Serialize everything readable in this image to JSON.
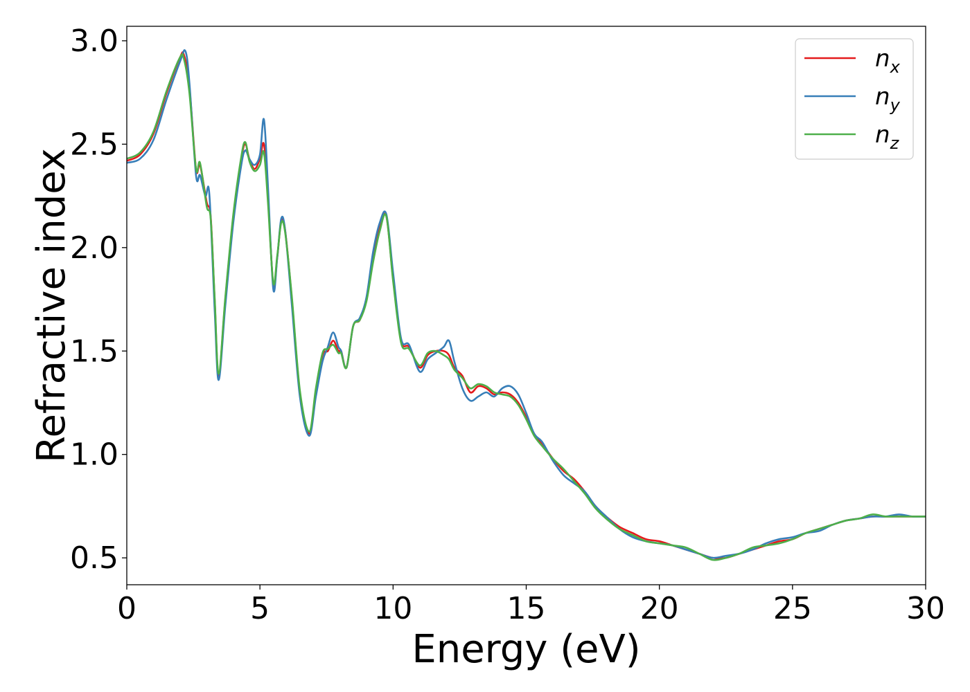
{
  "chart_data": {
    "type": "line",
    "xlabel": "Energy (eV)",
    "ylabel": "Refractive index",
    "xlim": [
      0,
      30
    ],
    "ylim": [
      0.37,
      3.07
    ],
    "x_ticks": [
      0,
      5,
      10,
      15,
      20,
      25,
      30
    ],
    "x_tick_labels": [
      "0",
      "5",
      "10",
      "15",
      "20",
      "25",
      "30"
    ],
    "y_ticks": [
      0.5,
      1.0,
      1.5,
      2.0,
      2.5,
      3.0
    ],
    "y_tick_labels": [
      "0.5",
      "1.0",
      "1.5",
      "2.0",
      "2.5",
      "3.0"
    ],
    "grid": false,
    "legend_position": "top-right",
    "series": [
      {
        "name": "n_x",
        "label_base": "n",
        "label_sub": "x",
        "color": "#e41a1c",
        "x": [
          0,
          0.5,
          1.0,
          1.5,
          2.0,
          2.15,
          2.35,
          2.6,
          2.75,
          3.0,
          3.15,
          3.3,
          3.45,
          3.7,
          4.0,
          4.3,
          4.45,
          4.6,
          4.8,
          5.0,
          5.15,
          5.3,
          5.5,
          5.65,
          5.8,
          5.95,
          6.2,
          6.5,
          6.85,
          7.1,
          7.35,
          7.55,
          7.75,
          7.95,
          8.05,
          8.25,
          8.5,
          8.75,
          9.0,
          9.25,
          9.5,
          9.75,
          10.0,
          10.3,
          10.6,
          11.0,
          11.3,
          11.6,
          11.9,
          12.1,
          12.3,
          12.6,
          12.9,
          13.2,
          13.5,
          13.8,
          14.1,
          14.4,
          14.7,
          15.0,
          15.3,
          15.6,
          16.0,
          16.4,
          16.8,
          17.2,
          17.6,
          18.0,
          18.5,
          19.0,
          19.5,
          20.0,
          20.5,
          21.0,
          21.5,
          22.0,
          22.5,
          23.0,
          23.5,
          24.0,
          24.5,
          25.0,
          25.5,
          26.0,
          26.5,
          27.0,
          27.5,
          28.0,
          28.5,
          29.0,
          29.5,
          30.0
        ],
        "y": [
          2.42,
          2.45,
          2.55,
          2.75,
          2.92,
          2.93,
          2.78,
          2.38,
          2.4,
          2.22,
          2.15,
          1.75,
          1.38,
          1.75,
          2.15,
          2.43,
          2.5,
          2.43,
          2.38,
          2.43,
          2.5,
          2.25,
          1.82,
          1.95,
          2.13,
          2.08,
          1.75,
          1.3,
          1.1,
          1.3,
          1.48,
          1.5,
          1.55,
          1.5,
          1.5,
          1.42,
          1.62,
          1.65,
          1.75,
          1.95,
          2.1,
          2.15,
          1.85,
          1.55,
          1.52,
          1.42,
          1.48,
          1.5,
          1.5,
          1.48,
          1.42,
          1.38,
          1.3,
          1.33,
          1.32,
          1.29,
          1.3,
          1.29,
          1.25,
          1.18,
          1.1,
          1.05,
          0.98,
          0.92,
          0.88,
          0.82,
          0.75,
          0.7,
          0.65,
          0.62,
          0.59,
          0.58,
          0.56,
          0.54,
          0.52,
          0.5,
          0.5,
          0.52,
          0.54,
          0.56,
          0.58,
          0.59,
          0.62,
          0.64,
          0.66,
          0.68,
          0.69,
          0.7,
          0.7,
          0.7,
          0.7,
          0.7
        ]
      },
      {
        "name": "n_y",
        "label_base": "n",
        "label_sub": "y",
        "color": "#377eb8",
        "x": [
          0,
          0.5,
          1.0,
          1.5,
          2.0,
          2.2,
          2.35,
          2.6,
          2.75,
          2.95,
          3.1,
          3.3,
          3.45,
          3.7,
          4.0,
          4.3,
          4.45,
          4.6,
          4.8,
          5.0,
          5.15,
          5.3,
          5.5,
          5.65,
          5.8,
          5.95,
          6.2,
          6.5,
          6.85,
          7.1,
          7.35,
          7.55,
          7.75,
          7.95,
          8.05,
          8.25,
          8.5,
          8.75,
          9.0,
          9.25,
          9.5,
          9.75,
          10.0,
          10.3,
          10.6,
          11.0,
          11.3,
          11.6,
          11.9,
          12.1,
          12.3,
          12.6,
          12.9,
          13.2,
          13.5,
          13.8,
          14.1,
          14.4,
          14.7,
          15.0,
          15.3,
          15.6,
          16.0,
          16.4,
          16.8,
          17.2,
          17.6,
          18.0,
          18.5,
          19.0,
          19.5,
          20.0,
          20.5,
          21.0,
          21.5,
          22.0,
          22.5,
          23.0,
          23.5,
          24.0,
          24.5,
          25.0,
          25.5,
          26.0,
          26.5,
          27.0,
          27.5,
          28.0,
          28.5,
          29.0,
          29.5,
          30.0
        ],
        "y": [
          2.41,
          2.43,
          2.52,
          2.72,
          2.9,
          2.95,
          2.8,
          2.35,
          2.35,
          2.25,
          2.26,
          1.7,
          1.36,
          1.72,
          2.12,
          2.4,
          2.47,
          2.43,
          2.4,
          2.45,
          2.62,
          2.3,
          1.8,
          1.95,
          2.14,
          2.08,
          1.72,
          1.28,
          1.09,
          1.28,
          1.45,
          1.52,
          1.59,
          1.52,
          1.5,
          1.42,
          1.62,
          1.66,
          1.76,
          1.98,
          2.12,
          2.16,
          1.88,
          1.56,
          1.53,
          1.4,
          1.46,
          1.49,
          1.52,
          1.55,
          1.45,
          1.32,
          1.26,
          1.28,
          1.3,
          1.28,
          1.32,
          1.33,
          1.29,
          1.2,
          1.1,
          1.06,
          0.97,
          0.9,
          0.86,
          0.82,
          0.75,
          0.7,
          0.64,
          0.6,
          0.58,
          0.57,
          0.56,
          0.54,
          0.52,
          0.5,
          0.51,
          0.52,
          0.54,
          0.57,
          0.59,
          0.6,
          0.62,
          0.63,
          0.66,
          0.68,
          0.69,
          0.7,
          0.7,
          0.71,
          0.7,
          0.7
        ]
      },
      {
        "name": "n_z",
        "label_base": "n",
        "label_sub": "z",
        "color": "#4daf4a",
        "x": [
          0,
          0.5,
          1.0,
          1.5,
          2.0,
          2.15,
          2.35,
          2.6,
          2.75,
          3.0,
          3.15,
          3.3,
          3.45,
          3.7,
          4.0,
          4.3,
          4.45,
          4.6,
          4.8,
          5.0,
          5.15,
          5.3,
          5.5,
          5.65,
          5.8,
          5.95,
          6.2,
          6.5,
          6.85,
          7.1,
          7.35,
          7.55,
          7.75,
          7.95,
          8.05,
          8.25,
          8.5,
          8.75,
          9.0,
          9.25,
          9.5,
          9.75,
          10.0,
          10.3,
          10.6,
          11.0,
          11.3,
          11.6,
          11.9,
          12.1,
          12.3,
          12.6,
          12.9,
          13.2,
          13.5,
          13.8,
          14.1,
          14.4,
          14.7,
          15.0,
          15.3,
          15.6,
          16.0,
          16.4,
          16.8,
          17.2,
          17.6,
          18.0,
          18.5,
          19.0,
          19.5,
          20.0,
          20.5,
          21.0,
          21.5,
          22.0,
          22.5,
          23.0,
          23.5,
          24.0,
          24.5,
          25.0,
          25.5,
          26.0,
          26.5,
          27.0,
          27.5,
          28.0,
          28.5,
          29.0,
          29.5,
          30.0
        ],
        "y": [
          2.43,
          2.46,
          2.56,
          2.76,
          2.92,
          2.91,
          2.75,
          2.38,
          2.41,
          2.2,
          2.14,
          1.76,
          1.39,
          1.76,
          2.16,
          2.44,
          2.51,
          2.42,
          2.37,
          2.4,
          2.46,
          2.22,
          1.83,
          1.96,
          2.12,
          2.07,
          1.76,
          1.31,
          1.11,
          1.32,
          1.49,
          1.51,
          1.53,
          1.49,
          1.49,
          1.42,
          1.62,
          1.65,
          1.74,
          1.93,
          2.08,
          2.15,
          1.84,
          1.54,
          1.51,
          1.43,
          1.49,
          1.5,
          1.48,
          1.46,
          1.41,
          1.37,
          1.32,
          1.34,
          1.33,
          1.3,
          1.29,
          1.28,
          1.24,
          1.17,
          1.09,
          1.04,
          0.98,
          0.93,
          0.87,
          0.81,
          0.74,
          0.69,
          0.64,
          0.61,
          0.58,
          0.57,
          0.56,
          0.55,
          0.52,
          0.49,
          0.5,
          0.52,
          0.55,
          0.56,
          0.57,
          0.59,
          0.62,
          0.64,
          0.66,
          0.68,
          0.69,
          0.71,
          0.7,
          0.7,
          0.7,
          0.7
        ]
      }
    ]
  }
}
